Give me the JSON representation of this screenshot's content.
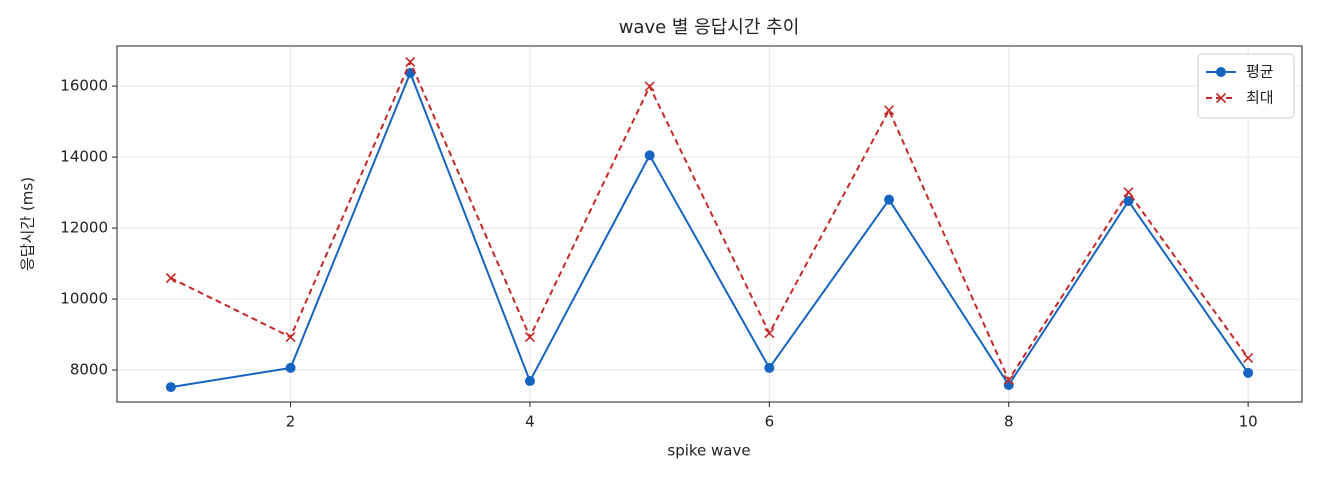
{
  "chart_data": {
    "type": "line",
    "title": "wave 별 응답시간 추이",
    "xlabel": "spike wave",
    "ylabel": "응답시간 (ms)",
    "x": [
      1,
      2,
      3,
      4,
      5,
      6,
      7,
      8,
      9,
      10
    ],
    "series": [
      {
        "name": "평균",
        "color": "#1565c0",
        "marker": "o",
        "dash": false,
        "values": [
          7520,
          8060,
          16370,
          7690,
          14050,
          8060,
          12800,
          7580,
          12760,
          7920
        ]
      },
      {
        "name": "최대",
        "color": "#c62828",
        "marker": "x",
        "dash": true,
        "values": [
          10590,
          8930,
          16680,
          8930,
          15990,
          9040,
          15320,
          7720,
          13010,
          8340
        ]
      }
    ],
    "xlim": [
      0.55,
      10.45
    ],
    "ylim": [
      7100,
      17130
    ],
    "xticks": [
      2,
      4,
      6,
      8,
      10
    ],
    "yticks": [
      8000,
      10000,
      12000,
      14000,
      16000
    ],
    "grid": true,
    "legend": "upper right"
  }
}
